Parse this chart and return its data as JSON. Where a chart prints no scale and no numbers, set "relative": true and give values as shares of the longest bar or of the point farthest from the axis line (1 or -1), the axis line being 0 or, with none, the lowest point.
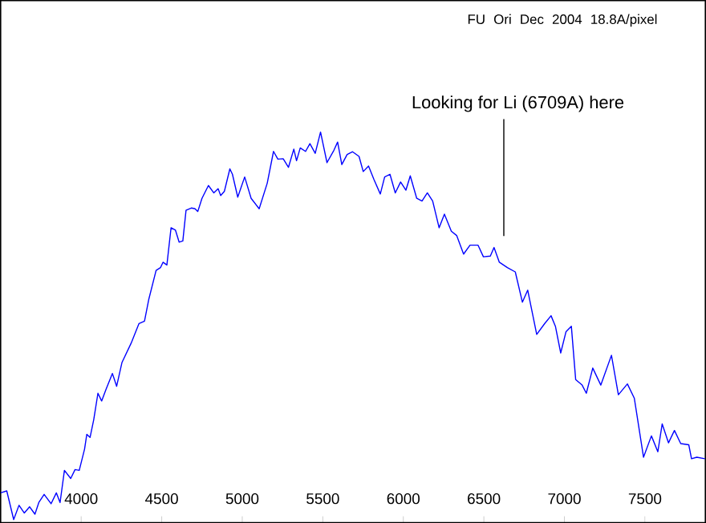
{
  "chart_data": {
    "type": "line",
    "title": "FU Ori Dec 2004 18.8A/pixel",
    "relative": true,
    "annotations": [
      "Looking for Li (6709A) here"
    ],
    "xlim": [
      3500,
      7875
    ],
    "xticks": [
      4000,
      4500,
      5000,
      5500,
      6000,
      6500,
      7000,
      7500
    ],
    "grid": false,
    "tick_labels": "x",
    "marker": "none",
    "line_style": "solid",
    "series": [
      {
        "color": "#0000ff",
        "x": [
          3500,
          3538,
          3581,
          3614,
          3647,
          3680,
          3713,
          3737,
          3770,
          3813,
          3846,
          3869,
          3896,
          3935,
          3962,
          3988,
          4021,
          4035,
          4055,
          4078,
          4104,
          4127,
          4154,
          4194,
          4220,
          4253,
          4310,
          4359,
          4393,
          4419,
          4465,
          4492,
          4508,
          4532,
          4558,
          4585,
          4608,
          4631,
          4651,
          4684,
          4707,
          4724,
          4750,
          4790,
          4823,
          4850,
          4866,
          4889,
          4923,
          4939,
          4972,
          5015,
          5055,
          5105,
          5155,
          5194,
          5221,
          5254,
          5287,
          5320,
          5337,
          5360,
          5393,
          5420,
          5453,
          5486,
          5526,
          5569,
          5592,
          5618,
          5651,
          5685,
          5725,
          5751,
          5784,
          5818,
          5857,
          5884,
          5917,
          5950,
          5983,
          6016,
          6043,
          6083,
          6116,
          6149,
          6182,
          6222,
          6255,
          6298,
          6331,
          6374,
          6414,
          6464,
          6497,
          6540,
          6563,
          6596,
          6646,
          6695,
          6739,
          6772,
          6828,
          6878,
          6917,
          6944,
          6977,
          7010,
          7043,
          7070,
          7110,
          7136,
          7176,
          7226,
          7292,
          7335,
          7391,
          7434,
          7491,
          7540,
          7580,
          7607,
          7646,
          7683,
          7722,
          7772,
          7789,
          7822,
          7872
        ],
        "values": [
          0.069,
          0.074,
          0.0,
          0.037,
          0.017,
          0.033,
          0.014,
          0.044,
          0.065,
          0.041,
          0.069,
          0.044,
          0.127,
          0.106,
          0.129,
          0.127,
          0.182,
          0.22,
          0.212,
          0.258,
          0.326,
          0.306,
          0.336,
          0.377,
          0.344,
          0.405,
          0.455,
          0.506,
          0.512,
          0.567,
          0.643,
          0.65,
          0.664,
          0.657,
          0.753,
          0.747,
          0.716,
          0.719,
          0.798,
          0.804,
          0.802,
          0.795,
          0.829,
          0.862,
          0.843,
          0.854,
          0.836,
          0.847,
          0.905,
          0.891,
          0.832,
          0.884,
          0.829,
          0.802,
          0.868,
          0.95,
          0.93,
          0.931,
          0.909,
          0.956,
          0.926,
          0.959,
          0.95,
          0.97,
          0.945,
          1.0,
          0.921,
          0.953,
          0.974,
          0.916,
          0.942,
          0.949,
          0.937,
          0.898,
          0.912,
          0.877,
          0.84,
          0.884,
          0.891,
          0.843,
          0.871,
          0.85,
          0.887,
          0.829,
          0.822,
          0.843,
          0.822,
          0.753,
          0.788,
          0.744,
          0.733,
          0.685,
          0.708,
          0.708,
          0.678,
          0.68,
          0.702,
          0.664,
          0.65,
          0.639,
          0.561,
          0.592,
          0.478,
          0.506,
          0.526,
          0.499,
          0.43,
          0.485,
          0.499,
          0.361,
          0.347,
          0.326,
          0.391,
          0.347,
          0.424,
          0.322,
          0.35,
          0.313,
          0.161,
          0.216,
          0.175,
          0.247,
          0.198,
          0.23,
          0.196,
          0.193,
          0.157,
          0.161,
          0.157
        ]
      }
    ]
  }
}
